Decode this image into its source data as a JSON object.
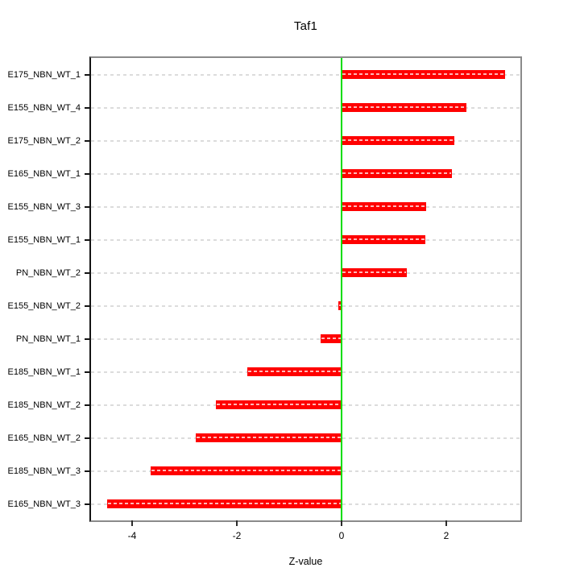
{
  "title": "Taf1",
  "chart_data": {
    "type": "bar",
    "orientation": "horizontal",
    "title": "Taf1",
    "xlabel": "Z-value",
    "categories": [
      "E175_NBN_WT_1",
      "E155_NBN_WT_4",
      "E175_NBN_WT_2",
      "E165_NBN_WT_1",
      "E155_NBN_WT_3",
      "E155_NBN_WT_1",
      "PN_NBN_WT_2",
      "E155_NBN_WT_2",
      "PN_NBN_WT_1",
      "E185_NBN_WT_1",
      "E185_NBN_WT_2",
      "E165_NBN_WT_2",
      "E185_NBN_WT_3",
      "E165_NBN_WT_3"
    ],
    "values": [
      3.13,
      2.38,
      2.16,
      2.11,
      1.62,
      1.6,
      1.25,
      -0.06,
      -0.4,
      -1.8,
      -2.4,
      -2.78,
      -3.65,
      -4.48
    ],
    "xlim": [
      -4.785,
      3.415
    ],
    "xticks": [
      -4,
      -2,
      0,
      2
    ],
    "xtick_labels": [
      "-4",
      "-2",
      "0",
      "2"
    ],
    "grid": "horizontal dashed, one line per category",
    "legend": "none",
    "colors": {
      "bar": "#ff0000",
      "bar_center_dash": "rgba(255,255,255,0.72)",
      "zero_line": "#00dd00",
      "gridline": "#dcdcdc",
      "plot_border": "#8a8a8a",
      "axis_line": "#141414",
      "text": "#000000",
      "background": "#ffffff"
    }
  }
}
